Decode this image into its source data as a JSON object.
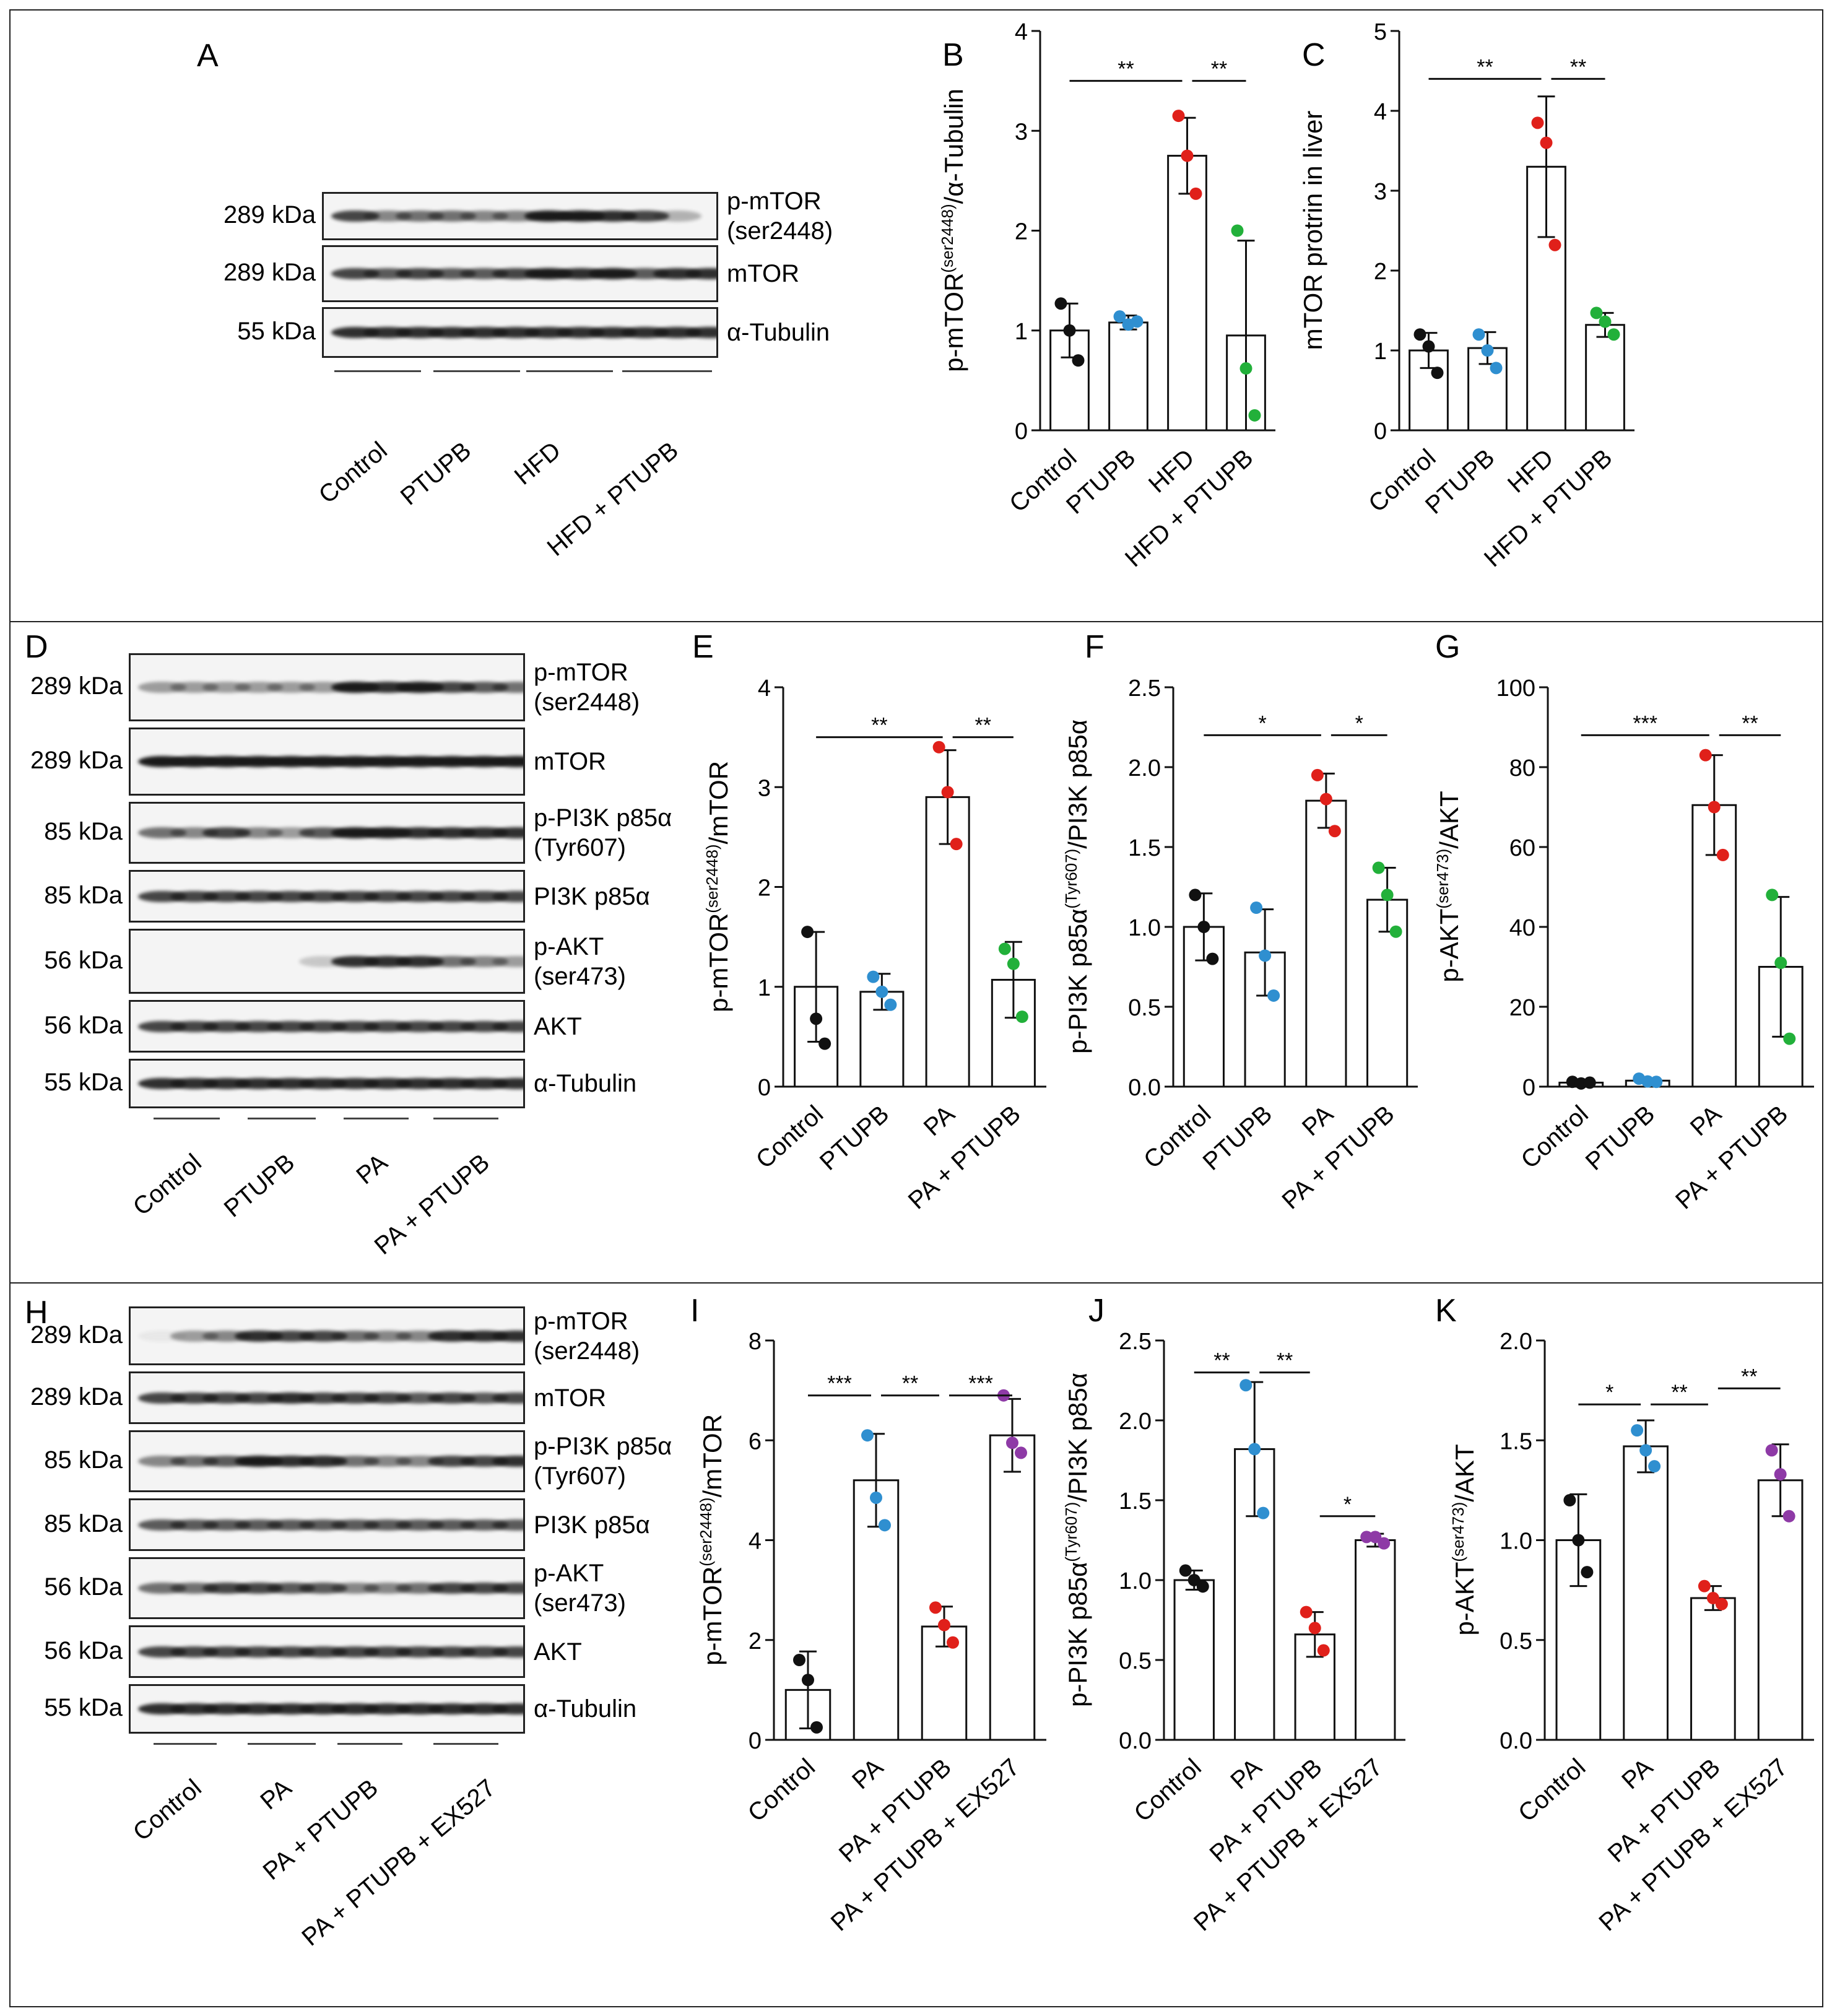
{
  "panels": {
    "row1": {
      "label": "A",
      "groups": [
        "Control",
        "PTUPB",
        "HFD",
        "HFD + PTUPB"
      ],
      "blots": [
        {
          "kda": "289 kDa",
          "protein": "p-mTOR\n(ser2448)",
          "intens": [
            0.8,
            0.5,
            0.6,
            0.6,
            0.5,
            0.5,
            1,
            1,
            0.9,
            0.8,
            0.3,
            0.0
          ]
        },
        {
          "kda": "289 kDa",
          "protein": "mTOR",
          "intens": [
            0.8,
            0.7,
            0.8,
            0.7,
            0.7,
            0.8,
            1,
            0.9,
            1,
            0.7,
            0.9,
            0.9
          ]
        },
        {
          "kda": "55 kDa",
          "protein": "α-Tubulin",
          "intens": [
            0.9,
            0.9,
            0.9,
            0.9,
            0.9,
            0.9,
            0.9,
            0.9,
            0.9,
            0.9,
            0.9,
            0.9
          ]
        }
      ]
    },
    "row2": {
      "label": "D",
      "groups": [
        "Control",
        "PTUPB",
        "PA",
        "PA + PTUPB"
      ],
      "blots": [
        {
          "kda": "289 kDa",
          "protein": "p-mTOR\n(ser2448)",
          "intens": [
            0.4,
            0.4,
            0.4,
            0.4,
            0.4,
            0.4,
            1,
            0.9,
            1,
            0.8,
            0.7,
            0.6
          ]
        },
        {
          "kda": "289 kDa",
          "protein": "mTOR",
          "intens": [
            1,
            1,
            1,
            1,
            1,
            1,
            1,
            1,
            1,
            1,
            1,
            1
          ]
        },
        {
          "kda": "85 kDa",
          "protein": "p-PI3K p85α\n(Tyr607)",
          "intens": [
            0.6,
            0.5,
            0.8,
            0.5,
            0.4,
            0.7,
            1,
            1,
            0.9,
            0.9,
            0.9,
            0.9
          ]
        },
        {
          "kda": "85 kDa",
          "protein": "PI3K p85α",
          "intens": [
            0.8,
            0.8,
            0.8,
            0.8,
            0.8,
            0.8,
            0.8,
            0.8,
            0.8,
            0.8,
            0.8,
            0.8
          ]
        },
        {
          "kda": "56 kDa",
          "protein": "p-AKT\n(ser473)",
          "intens": [
            0,
            0,
            0,
            0,
            0,
            0.2,
            0.9,
            0.9,
            0.9,
            0.6,
            0.5,
            0.4
          ]
        },
        {
          "kda": "56 kDa",
          "protein": "AKT",
          "intens": [
            0.8,
            0.8,
            0.8,
            0.8,
            0.8,
            0.8,
            0.8,
            0.8,
            0.8,
            0.8,
            0.8,
            0.8
          ]
        },
        {
          "kda": "55 kDa",
          "protein": "α-Tubulin",
          "intens": [
            0.9,
            0.9,
            0.9,
            0.9,
            0.9,
            0.9,
            0.9,
            0.9,
            0.9,
            0.9,
            0.9,
            0.9
          ]
        }
      ]
    },
    "row3": {
      "label": "H",
      "groups": [
        "Control",
        "PA",
        "PA + PTUPB",
        "PA + PTUPB + EX527"
      ],
      "blots": [
        {
          "kda": "289 kDa",
          "protein": "p-mTOR\n(ser2448)",
          "intens": [
            0.05,
            0.4,
            0.5,
            0.9,
            0.8,
            0.8,
            0.6,
            0.5,
            0.5,
            0.9,
            0.9,
            0.9
          ]
        },
        {
          "kda": "289 kDa",
          "protein": "mTOR",
          "intens": [
            0.8,
            0.8,
            0.8,
            0.8,
            0.9,
            0.8,
            0.8,
            0.8,
            0.7,
            0.8,
            0.7,
            0.8
          ]
        },
        {
          "kda": "85 kDa",
          "protein": "p-PI3K p85α\n(Tyr607)",
          "intens": [
            0.5,
            0.6,
            0.7,
            1,
            0.9,
            0.9,
            0.6,
            0.5,
            0.5,
            0.8,
            0.8,
            0.9
          ]
        },
        {
          "kda": "85 kDa",
          "protein": "PI3K p85α",
          "intens": [
            0.7,
            0.7,
            0.7,
            0.7,
            0.7,
            0.7,
            0.7,
            0.7,
            0.7,
            0.7,
            0.7,
            0.7
          ]
        },
        {
          "kda": "56 kDa",
          "protein": "p-AKT\n(ser473)",
          "intens": [
            0.6,
            0.6,
            0.8,
            0.8,
            0.7,
            0.7,
            0.5,
            0.5,
            0.6,
            0.8,
            0.8,
            0.8
          ]
        },
        {
          "kda": "56 kDa",
          "protein": "AKT",
          "intens": [
            0.8,
            0.8,
            0.8,
            0.8,
            0.8,
            0.8,
            0.8,
            0.8,
            0.8,
            0.8,
            0.8,
            0.8
          ]
        },
        {
          "kda": "55 kDa",
          "protein": "α-Tubulin",
          "intens": [
            0.9,
            0.9,
            0.9,
            0.9,
            0.9,
            0.9,
            0.9,
            0.9,
            0.9,
            0.9,
            0.9,
            0.9
          ]
        }
      ]
    }
  },
  "colors": {
    "group1": "#111111",
    "group2": "#2f8fd0",
    "group3": "#e0201a",
    "group4": "#22b03a",
    "group4b": "#8e3aa6"
  },
  "chart_data": [
    {
      "panel": "B",
      "type": "bar",
      "ylabel": "p-mTOR(ser2448)/α-Tubulin",
      "ylabel_main": "p-mTOR",
      "ylabel_sup": "(ser2448)",
      "ylabel_tail": "/α-Tubulin",
      "categories": [
        "Control",
        "PTUPB",
        "HFD",
        "HFD + PTUPB"
      ],
      "values": [
        1.0,
        1.08,
        2.75,
        0.95
      ],
      "errors": [
        0.27,
        0.07,
        0.38,
        0.95
      ],
      "points": [
        [
          1.27,
          1.0,
          0.7
        ],
        [
          1.14,
          1.06,
          1.09
        ],
        [
          3.15,
          2.75,
          2.37
        ],
        [
          2.0,
          0.62,
          0.15
        ]
      ],
      "ylim": [
        0,
        4
      ],
      "yticks": [
        "0",
        "1",
        "2",
        "3",
        "4"
      ],
      "sig": [
        {
          "from": 0,
          "to": 2,
          "label": "**",
          "y": 3.5
        },
        {
          "from": 2,
          "to": 3,
          "label": "**",
          "y": 3.5
        }
      ]
    },
    {
      "panel": "C",
      "type": "bar",
      "ylabel": "mTOR protrin in liver",
      "ylabel_main": "mTOR protrin in liver",
      "ylabel_sup": "",
      "ylabel_tail": "",
      "categories": [
        "Control",
        "PTUPB",
        "HFD",
        "HFD + PTUPB"
      ],
      "values": [
        1.0,
        1.03,
        3.3,
        1.32
      ],
      "errors": [
        0.22,
        0.2,
        0.88,
        0.15
      ],
      "points": [
        [
          1.2,
          1.05,
          0.72
        ],
        [
          1.2,
          1.0,
          0.78
        ],
        [
          3.85,
          3.6,
          2.32
        ],
        [
          1.47,
          1.36,
          1.2
        ]
      ],
      "ylim": [
        0,
        5
      ],
      "yticks": [
        "0",
        "1",
        "2",
        "3",
        "4",
        "5"
      ],
      "sig": [
        {
          "from": 0,
          "to": 2,
          "label": "**",
          "y": 4.4
        },
        {
          "from": 2,
          "to": 3,
          "label": "**",
          "y": 4.4
        }
      ]
    },
    {
      "panel": "E",
      "type": "bar",
      "ylabel": "p-mTOR(ser2448)/mTOR",
      "ylabel_main": "p-mTOR",
      "ylabel_sup": "(ser2448)",
      "ylabel_tail": "/mTOR",
      "categories": [
        "Control",
        "PTUPB",
        "PA",
        "PA + PTUPB"
      ],
      "values": [
        1.0,
        0.95,
        2.9,
        1.07
      ],
      "errors": [
        0.55,
        0.18,
        0.47,
        0.38
      ],
      "points": [
        [
          1.55,
          0.68,
          0.43
        ],
        [
          1.1,
          0.95,
          0.82
        ],
        [
          3.4,
          2.95,
          2.43
        ],
        [
          1.38,
          1.23,
          0.7
        ]
      ],
      "ylim": [
        0,
        4
      ],
      "yticks": [
        "0",
        "1",
        "2",
        "3",
        "4"
      ],
      "sig": [
        {
          "from": 0,
          "to": 2,
          "label": "**",
          "y": 3.5
        },
        {
          "from": 2,
          "to": 3,
          "label": "**",
          "y": 3.5
        }
      ]
    },
    {
      "panel": "F",
      "type": "bar",
      "ylabel": "p-PI3K p85α(Tyr607)/PI3K p85α",
      "ylabel_main": "p-PI3K p85α",
      "ylabel_sup": "(Tyr607)",
      "ylabel_tail": "/PI3K p85α",
      "categories": [
        "Control",
        "PTUPB",
        "PA",
        "PA + PTUPB"
      ],
      "values": [
        1.0,
        0.84,
        1.79,
        1.17
      ],
      "errors": [
        0.21,
        0.27,
        0.17,
        0.2
      ],
      "points": [
        [
          1.2,
          1.0,
          0.8
        ],
        [
          1.12,
          0.82,
          0.57
        ],
        [
          1.95,
          1.8,
          1.6
        ],
        [
          1.37,
          1.2,
          0.97
        ]
      ],
      "ylim": [
        0,
        2.5
      ],
      "yticks": [
        "0.0",
        "0.5",
        "1.0",
        "1.5",
        "2.0",
        "2.5"
      ],
      "sig": [
        {
          "from": 0,
          "to": 2,
          "label": "*",
          "y": 2.2
        },
        {
          "from": 2,
          "to": 3,
          "label": "*",
          "y": 2.2
        }
      ]
    },
    {
      "panel": "G",
      "type": "bar",
      "ylabel": "p-AKT(ser473)/AKT",
      "ylabel_main": "p-AKT",
      "ylabel_sup": "(ser473)",
      "ylabel_tail": "/AKT",
      "categories": [
        "Control",
        "PTUPB",
        "PA",
        "PA + PTUPB"
      ],
      "values": [
        1.0,
        1.5,
        70.5,
        30.0
      ],
      "errors": [
        0.6,
        0.6,
        12.5,
        17.5
      ],
      "points": [
        [
          1.2,
          0.8,
          1.0
        ],
        [
          2.0,
          1.3,
          1.2
        ],
        [
          83.0,
          70.0,
          58.0
        ],
        [
          48.0,
          31.0,
          12.0
        ]
      ],
      "ylim": [
        0,
        100
      ],
      "yticks": [
        "0",
        "20",
        "40",
        "60",
        "80",
        "100"
      ],
      "sig": [
        {
          "from": 0,
          "to": 2,
          "label": "***",
          "y": 88
        },
        {
          "from": 2,
          "to": 3,
          "label": "**",
          "y": 88
        }
      ]
    },
    {
      "panel": "I",
      "type": "bar",
      "ylabel": "p-mTOR(ser2448)/mTOR",
      "ylabel_main": "p-mTOR",
      "ylabel_sup": "(ser2448)",
      "ylabel_tail": "/mTOR",
      "categories": [
        "Control",
        "PA",
        "PA + PTUPB",
        "PA + PTUPB + EX527"
      ],
      "values": [
        1.0,
        5.2,
        2.27,
        6.1
      ],
      "errors": [
        0.77,
        0.93,
        0.4,
        0.73
      ],
      "points": [
        [
          1.6,
          1.2,
          0.25
        ],
        [
          6.1,
          4.85,
          4.3
        ],
        [
          2.65,
          2.3,
          1.95
        ],
        [
          6.9,
          5.95,
          5.75
        ]
      ],
      "ylim": [
        0,
        8
      ],
      "yticks": [
        "0",
        "2",
        "4",
        "6",
        "8"
      ],
      "sig": [
        {
          "from": 0,
          "to": 1,
          "label": "***",
          "y": 6.9
        },
        {
          "from": 1,
          "to": 2,
          "label": "**",
          "y": 6.9
        },
        {
          "from": 2,
          "to": 3,
          "label": "***",
          "y": 6.9
        }
      ]
    },
    {
      "panel": "J",
      "type": "bar",
      "ylabel": "p-PI3K p85α(Tyr607)/PI3K p85α",
      "ylabel_main": "p-PI3K p85α",
      "ylabel_sup": "(Tyr607)",
      "ylabel_tail": "/PI3K p85α",
      "categories": [
        "Control",
        "PA",
        "PA + PTUPB",
        "PA + PTUPB + EX527"
      ],
      "values": [
        1.0,
        1.82,
        0.66,
        1.25
      ],
      "errors": [
        0.06,
        0.42,
        0.14,
        0.04
      ],
      "points": [
        [
          1.06,
          1.0,
          0.96
        ],
        [
          2.22,
          1.82,
          1.42
        ],
        [
          0.8,
          0.7,
          0.56
        ],
        [
          1.27,
          1.27,
          1.23
        ]
      ],
      "ylim": [
        0,
        2.5
      ],
      "yticks": [
        "0.0",
        "0.5",
        "1.0",
        "1.5",
        "2.0",
        "2.5"
      ],
      "sig": [
        {
          "from": 0,
          "to": 1,
          "label": "**",
          "y": 2.3
        },
        {
          "from": 1,
          "to": 2,
          "label": "**",
          "y": 2.3
        },
        {
          "from": 2,
          "to": 3,
          "label": "*",
          "y": 1.4
        }
      ]
    },
    {
      "panel": "K",
      "type": "bar",
      "ylabel": "p-AKT(ser473)/AKT",
      "ylabel_main": "p-AKT",
      "ylabel_sup": "(ser473)",
      "ylabel_tail": "/AKT",
      "categories": [
        "Control",
        "PA",
        "PA + PTUPB",
        "PA + PTUPB + EX527"
      ],
      "values": [
        1.0,
        1.47,
        0.71,
        1.3
      ],
      "errors": [
        0.23,
        0.13,
        0.06,
        0.18
      ],
      "points": [
        [
          1.2,
          1.0,
          0.84
        ],
        [
          1.55,
          1.45,
          1.37
        ],
        [
          0.77,
          0.71,
          0.68
        ],
        [
          1.45,
          1.33,
          1.12
        ]
      ],
      "ylim": [
        0,
        2.0
      ],
      "yticks": [
        "0.0",
        "0.5",
        "1.0",
        "1.5",
        "2.0"
      ],
      "sig": [
        {
          "from": 0,
          "to": 1,
          "label": "*",
          "y": 1.68
        },
        {
          "from": 1,
          "to": 2,
          "label": "**",
          "y": 1.68
        },
        {
          "from": 2,
          "to": 3,
          "label": "**",
          "y": 1.76
        }
      ]
    }
  ]
}
